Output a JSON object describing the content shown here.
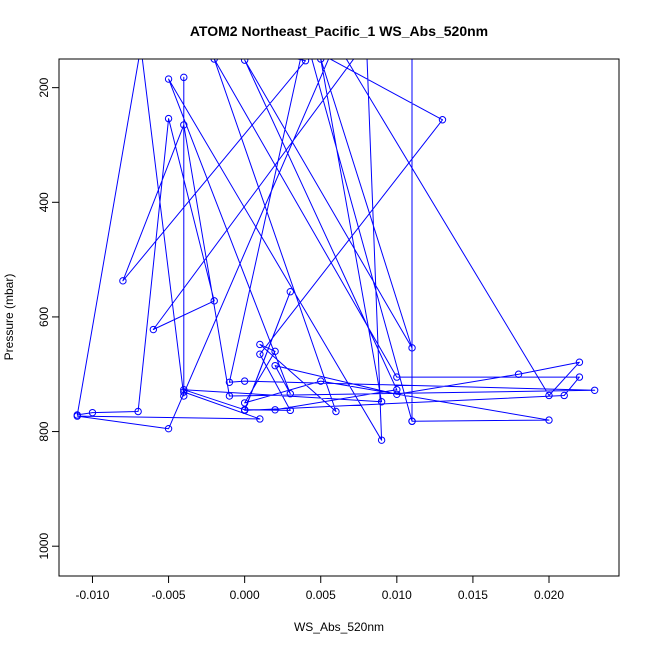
{
  "chart_data": {
    "type": "line",
    "title": "ATOM2 Northeast_Pacific_1 WS_Abs_520nm",
    "xlabel": "WS_Abs_520nm",
    "ylabel": "Pressure (mbar)",
    "xlim": [
      -0.0122,
      0.0246
    ],
    "ylim": [
      1052,
      150
    ],
    "y_inverted": true,
    "grid": false,
    "legend": "none",
    "xticks": [
      -0.01,
      -0.005,
      0.0,
      0.005,
      0.01,
      0.015,
      0.02
    ],
    "xtick_labels": [
      "-0.010",
      "-0.005",
      "0.000",
      "0.005",
      "0.010",
      "0.015",
      "0.020"
    ],
    "yticks": [
      200,
      400,
      600,
      800,
      1000
    ],
    "ytick_labels": [
      "200",
      "400",
      "600",
      "800",
      "1000"
    ],
    "series": [
      {
        "color": "#0000ff",
        "marker": "open-circle",
        "points": [
          [
            -0.0065,
            80
          ],
          [
            -0.011,
            771
          ],
          [
            -0.01,
            767
          ],
          [
            -0.007,
            765
          ],
          [
            -0.005,
            254
          ],
          [
            -0.002,
            572
          ],
          [
            -0.006,
            622
          ],
          [
            0.008,
            120
          ],
          [
            0.009,
            815
          ],
          [
            -0.005,
            185
          ],
          [
            0.003,
            734
          ],
          [
            0.002,
            685
          ],
          [
            0.01,
            735
          ],
          [
            0.018,
            700
          ],
          [
            0.022,
            679
          ],
          [
            0.02,
            737
          ],
          [
            0.006,
            120
          ],
          [
            -0.005,
            795
          ],
          [
            -0.011,
            773
          ],
          [
            0.001,
            778
          ],
          [
            -0.004,
            731
          ],
          [
            -0.004,
            182
          ],
          [
            -0.004,
            738
          ],
          [
            -0.007,
            90
          ],
          [
            0.004,
            153
          ],
          [
            -0.008,
            537
          ],
          [
            -0.004,
            265
          ],
          [
            -0.001,
            738
          ],
          [
            0.023,
            728
          ],
          [
            0.0,
            712
          ],
          [
            -0.001,
            714
          ],
          [
            0.004,
            110
          ],
          [
            0.011,
            782
          ],
          [
            0.02,
            780
          ],
          [
            0.005,
            712
          ],
          [
            0.0,
            750
          ],
          [
            0.002,
            660
          ],
          [
            0.001,
            648
          ],
          [
            0.006,
            765
          ],
          [
            -0.002,
            150
          ],
          [
            0.01,
            705
          ],
          [
            0.022,
            705
          ],
          [
            0.021,
            737
          ],
          [
            0.0,
            763
          ],
          [
            0.003,
            556
          ],
          [
            0.0,
            762
          ],
          [
            -0.004,
            727
          ],
          [
            0.009,
            748
          ],
          [
            0.005,
            150
          ],
          [
            0.011,
            654
          ],
          [
            0.0,
            152
          ],
          [
            0.01,
            727
          ],
          [
            0.002,
            762
          ],
          [
            0.0,
            762
          ],
          [
            0.003,
            763
          ],
          [
            0.001,
            665
          ],
          [
            0.013,
            256
          ],
          [
            0.002,
            98
          ],
          [
            0.011,
            60
          ],
          [
            0.011,
            782
          ]
        ]
      }
    ]
  }
}
